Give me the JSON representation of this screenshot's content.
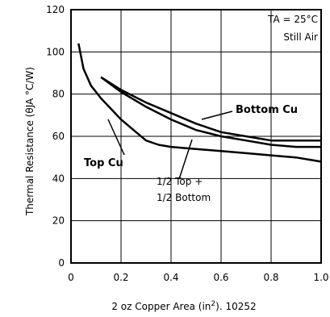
{
  "chart_data": {
    "type": "line",
    "xlabel_text": "2 oz Copper Area (in",
    "xlabel_sup": "2",
    "xlabel_tail": "). 10252",
    "ylabel": "Thermal Resistance (θJA °C/W)",
    "xlim": [
      0,
      1.0
    ],
    "ylim": [
      0,
      120
    ],
    "x_ticks": [
      0,
      0.2,
      0.4,
      0.6,
      0.8,
      1.0
    ],
    "x_tick_labels": [
      "0",
      "0.2",
      "0.4",
      "0.6",
      "0.8",
      "1.0"
    ],
    "y_ticks": [
      0,
      20,
      40,
      60,
      80,
      100,
      120
    ],
    "y_tick_labels": [
      "0",
      "20",
      "40",
      "60",
      "80",
      "100",
      "120"
    ],
    "grid": true,
    "condition_line1": "TA = 25°C",
    "condition_line2": "Still Air",
    "series": [
      {
        "name": "Top Cu",
        "x": [
          0.03,
          0.05,
          0.08,
          0.12,
          0.16,
          0.2,
          0.25,
          0.3,
          0.35,
          0.4,
          0.5,
          0.6,
          0.7,
          0.8,
          0.9,
          1.0
        ],
        "y": [
          104,
          92,
          84,
          78,
          73,
          68,
          63,
          58,
          56,
          55,
          54,
          53,
          52,
          51,
          50,
          48
        ]
      },
      {
        "name": "1/2 Top + 1/2 Bottom",
        "x": [
          0.12,
          0.2,
          0.3,
          0.4,
          0.5,
          0.6,
          0.7,
          0.8,
          0.9,
          1.0
        ],
        "y": [
          88,
          81,
          74,
          68,
          63,
          60,
          58,
          56,
          55,
          55
        ]
      },
      {
        "name": "Bottom Cu",
        "x": [
          0.12,
          0.2,
          0.3,
          0.4,
          0.5,
          0.6,
          0.7,
          0.8,
          0.9,
          1.0
        ],
        "y": [
          88,
          82,
          76,
          71,
          66,
          62,
          60,
          58,
          58,
          58
        ]
      }
    ]
  }
}
